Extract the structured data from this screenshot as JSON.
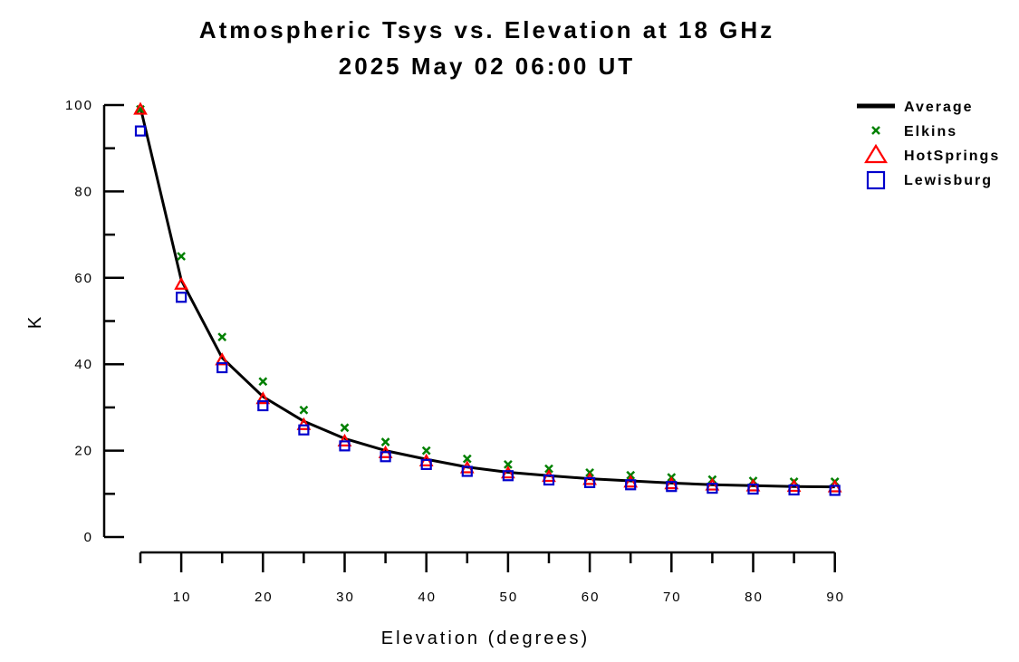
{
  "chart_data": {
    "type": "line",
    "title": "Atmospheric Tsys vs. Elevation at 18 GHz",
    "subtitle": "2025 May 02 06:00 UT",
    "xlabel": "Elevation (degrees)",
    "ylabel": "K",
    "xlim": [
      3,
      92
    ],
    "ylim": [
      0,
      100
    ],
    "x_ticks": [
      10,
      20,
      30,
      40,
      50,
      60,
      70,
      80,
      90
    ],
    "y_ticks": [
      0,
      20,
      40,
      60,
      80,
      100
    ],
    "grid": false,
    "legend_position": "top-right",
    "x": [
      5,
      10,
      15,
      20,
      25,
      30,
      35,
      40,
      45,
      50,
      55,
      60,
      65,
      70,
      75,
      80,
      85,
      90
    ],
    "series": [
      {
        "name": "Average",
        "style": "line",
        "color": "#000000",
        "values": [
          99.5,
          59.5,
          41.5,
          32.5,
          26.8,
          22.8,
          20.0,
          18.0,
          16.2,
          15.0,
          14.2,
          13.5,
          13.0,
          12.5,
          12.1,
          11.9,
          11.7,
          11.6
        ]
      },
      {
        "name": "Elkins",
        "style": "marker",
        "marker": "x",
        "color": "#008000",
        "values": [
          99.0,
          65.0,
          46.3,
          36.0,
          29.4,
          25.3,
          22.0,
          20.0,
          18.1,
          16.8,
          15.8,
          14.9,
          14.3,
          13.8,
          13.3,
          13.0,
          12.8,
          12.8
        ]
      },
      {
        "name": "HotSprings",
        "style": "marker",
        "marker": "triangle",
        "color": "#ff0000",
        "values": [
          99.0,
          58.5,
          41.0,
          32.0,
          26.0,
          22.2,
          19.5,
          17.6,
          16.0,
          14.8,
          14.0,
          13.3,
          12.7,
          12.3,
          12.0,
          11.8,
          11.7,
          11.6
        ]
      },
      {
        "name": "Lewisburg",
        "style": "marker",
        "marker": "square",
        "color": "#0000cc",
        "values": [
          94.0,
          55.5,
          39.2,
          30.4,
          24.8,
          21.1,
          18.6,
          16.8,
          15.2,
          14.2,
          13.2,
          12.6,
          12.1,
          11.7,
          11.3,
          11.1,
          10.9,
          10.8
        ]
      }
    ]
  }
}
